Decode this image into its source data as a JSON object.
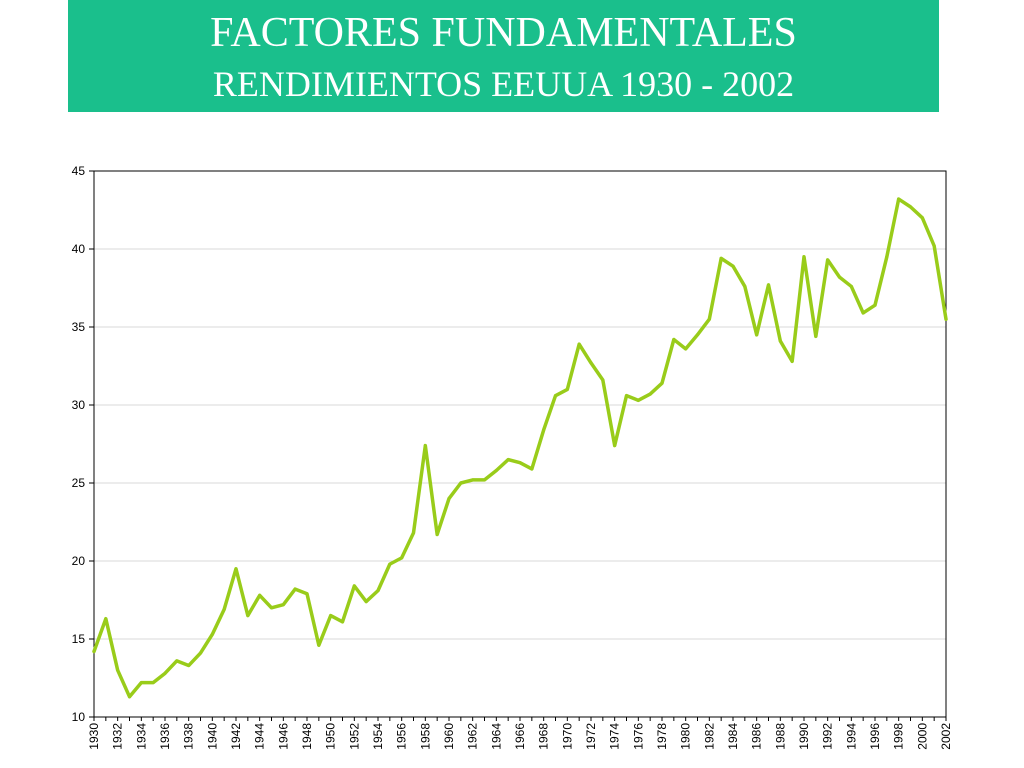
{
  "header": {
    "title": "FACTORES FUNDAMENTALES",
    "subtitle": "RENDIMIENTOS EEUUA 1930 - 2002",
    "background_color": "#1abf8c"
  },
  "chart_data": {
    "type": "line",
    "title": "",
    "xlabel": "",
    "ylabel": "",
    "ylim": [
      10,
      45
    ],
    "y_ticks": [
      "10",
      "15",
      "20",
      "25",
      "30",
      "35",
      "40",
      "45"
    ],
    "x_ticks": [
      "1930",
      "1932",
      "1934",
      "1936",
      "1938",
      "1940",
      "1942",
      "1944",
      "1946",
      "1948",
      "1950",
      "1952",
      "1954",
      "1956",
      "1958",
      "1960",
      "1962",
      "1964",
      "1966",
      "1968",
      "1970",
      "1972",
      "1974",
      "1976",
      "1978",
      "1980",
      "1982",
      "1984",
      "1986",
      "1988",
      "1990",
      "1992",
      "1994",
      "1996",
      "1998",
      "2000",
      "2002"
    ],
    "grid": true,
    "legend": "none",
    "line_color": "#99cc1a",
    "series": [
      {
        "x": [
          1930,
          1931,
          1932,
          1933,
          1934,
          1935,
          1936,
          1937,
          1938,
          1939,
          1940,
          1941,
          1942,
          1943,
          1944,
          1945,
          1946,
          1947,
          1948,
          1949,
          1950,
          1951,
          1952,
          1953,
          1954,
          1955,
          1956,
          1957,
          1958,
          1959,
          1960,
          1961,
          1962,
          1963,
          1964,
          1965,
          1966,
          1967,
          1968,
          1969,
          1970,
          1971,
          1972,
          1973,
          1974,
          1975,
          1976,
          1977,
          1978,
          1979,
          1980,
          1981,
          1982,
          1983,
          1984,
          1985,
          1986,
          1987,
          1988,
          1989,
          1990,
          1991,
          1992,
          1993,
          1994,
          1995,
          1996,
          1997,
          1998,
          1999,
          2000,
          2001,
          2002
        ],
        "values": [
          14.2,
          16.3,
          13.0,
          11.3,
          12.2,
          12.2,
          12.8,
          13.6,
          13.3,
          14.1,
          15.3,
          16.9,
          19.5,
          16.5,
          17.8,
          17.0,
          17.2,
          18.2,
          17.9,
          14.6,
          16.5,
          16.1,
          18.4,
          17.4,
          18.1,
          19.8,
          20.2,
          21.8,
          27.4,
          21.7,
          24.0,
          25.0,
          25.2,
          25.2,
          25.8,
          26.5,
          26.3,
          25.9,
          28.4,
          30.6,
          31.0,
          33.9,
          32.7,
          31.6,
          27.4,
          30.6,
          30.3,
          30.7,
          31.4,
          34.2,
          33.6,
          34.5,
          35.5,
          39.4,
          38.9,
          37.6,
          34.5,
          37.7,
          34.1,
          32.8,
          39.5,
          34.4,
          39.3,
          38.2,
          37.6,
          35.9,
          36.4,
          39.5,
          43.2,
          42.7,
          42.0,
          40.2,
          35.5
        ]
      }
    ]
  }
}
